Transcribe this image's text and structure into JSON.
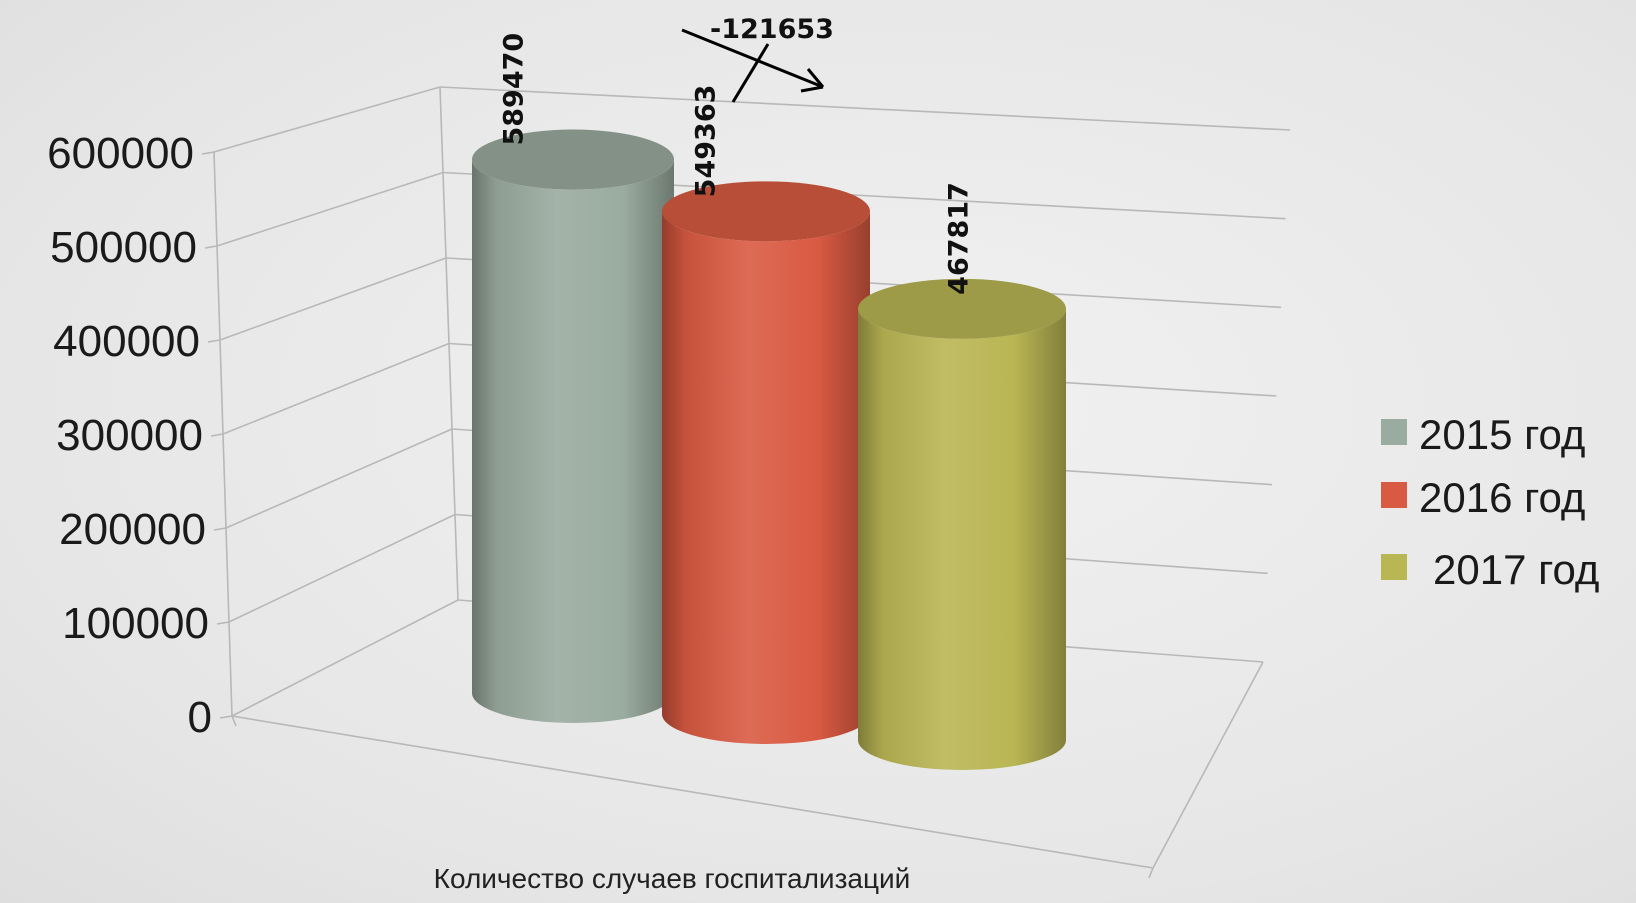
{
  "chart_data": {
    "type": "bar",
    "style": "3d-cylinder",
    "xlabel": "Количество случаев госпитализаций",
    "ylabel": "",
    "ylim": [
      0,
      600000
    ],
    "yticks": [
      "0",
      "100000",
      "200000",
      "300000",
      "400000",
      "500000",
      "600000"
    ],
    "grid": true,
    "legend_position": "right",
    "series": [
      {
        "name": "2015 год",
        "value": 589470,
        "label": "589470",
        "color": "#9aab9f"
      },
      {
        "name": "2016 год",
        "value": 549363,
        "label": "549363",
        "color": "#d95a42"
      },
      {
        "name": "2017 год",
        "value": 467817,
        "label": "467817",
        "color": "#b9b654"
      }
    ],
    "annotation": {
      "text": "-121653",
      "type": "arrow-down"
    }
  }
}
